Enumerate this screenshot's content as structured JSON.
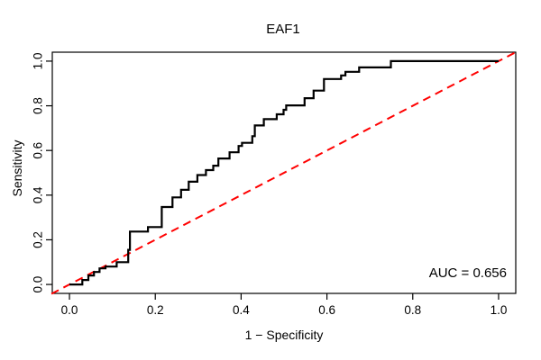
{
  "chart_data": {
    "type": "line",
    "title": "EAF1",
    "xlabel": "1 − Specificity",
    "ylabel": "Sensitivity",
    "xlim": [
      0,
      1
    ],
    "ylim": [
      0,
      1
    ],
    "x_ticks": [
      0,
      0.2,
      0.4,
      0.6,
      0.8,
      1.0
    ],
    "y_ticks": [
      0,
      0.2,
      0.4,
      0.6,
      0.8,
      1.0
    ],
    "x_tick_labels": [
      "0.0",
      "0.2",
      "0.4",
      "0.6",
      "0.8",
      "1.0"
    ],
    "y_tick_labels": [
      "0.0",
      "0.2",
      "0.4",
      "0.6",
      "0.8",
      "1.0"
    ],
    "grid": false,
    "auc": 0.656,
    "auc_label": "AUC = 0.656",
    "series": [
      {
        "name": "ROC curve (EAF1)",
        "color": "#000000",
        "style": "solid-step",
        "points": [
          [
            0.0,
            0.0
          ],
          [
            0.03,
            0.0
          ],
          [
            0.03,
            0.02
          ],
          [
            0.044,
            0.02
          ],
          [
            0.044,
            0.04
          ],
          [
            0.057,
            0.04
          ],
          [
            0.057,
            0.056
          ],
          [
            0.07,
            0.056
          ],
          [
            0.07,
            0.072
          ],
          [
            0.084,
            0.072
          ],
          [
            0.084,
            0.08
          ],
          [
            0.11,
            0.08
          ],
          [
            0.11,
            0.1
          ],
          [
            0.137,
            0.1
          ],
          [
            0.137,
            0.155
          ],
          [
            0.141,
            0.155
          ],
          [
            0.141,
            0.237
          ],
          [
            0.183,
            0.237
          ],
          [
            0.183,
            0.257
          ],
          [
            0.215,
            0.257
          ],
          [
            0.215,
            0.347
          ],
          [
            0.24,
            0.347
          ],
          [
            0.24,
            0.39
          ],
          [
            0.26,
            0.39
          ],
          [
            0.26,
            0.424
          ],
          [
            0.278,
            0.424
          ],
          [
            0.278,
            0.46
          ],
          [
            0.298,
            0.46
          ],
          [
            0.298,
            0.49
          ],
          [
            0.318,
            0.49
          ],
          [
            0.318,
            0.512
          ],
          [
            0.335,
            0.512
          ],
          [
            0.335,
            0.532
          ],
          [
            0.347,
            0.532
          ],
          [
            0.347,
            0.564
          ],
          [
            0.373,
            0.564
          ],
          [
            0.373,
            0.592
          ],
          [
            0.394,
            0.592
          ],
          [
            0.394,
            0.62
          ],
          [
            0.402,
            0.62
          ],
          [
            0.402,
            0.634
          ],
          [
            0.426,
            0.634
          ],
          [
            0.426,
            0.664
          ],
          [
            0.432,
            0.664
          ],
          [
            0.432,
            0.712
          ],
          [
            0.453,
            0.712
          ],
          [
            0.453,
            0.74
          ],
          [
            0.483,
            0.74
          ],
          [
            0.483,
            0.762
          ],
          [
            0.499,
            0.762
          ],
          [
            0.499,
            0.782
          ],
          [
            0.505,
            0.782
          ],
          [
            0.505,
            0.802
          ],
          [
            0.548,
            0.802
          ],
          [
            0.548,
            0.834
          ],
          [
            0.569,
            0.834
          ],
          [
            0.569,
            0.868
          ],
          [
            0.593,
            0.868
          ],
          [
            0.593,
            0.92
          ],
          [
            0.633,
            0.92
          ],
          [
            0.633,
            0.936
          ],
          [
            0.643,
            0.936
          ],
          [
            0.643,
            0.952
          ],
          [
            0.675,
            0.952
          ],
          [
            0.675,
            0.972
          ],
          [
            0.749,
            0.972
          ],
          [
            0.749,
            1.0
          ],
          [
            1.0,
            1.0
          ]
        ]
      },
      {
        "name": "chance diagonal",
        "color": "#FF0000",
        "style": "dashed",
        "points": [
          [
            -0.042,
            -0.042
          ],
          [
            1.042,
            1.042
          ]
        ]
      }
    ]
  },
  "colors": {
    "roc_curve": "#000000",
    "diagonal": "#FF0000",
    "axis": "#000000",
    "background": "#FFFFFF"
  }
}
